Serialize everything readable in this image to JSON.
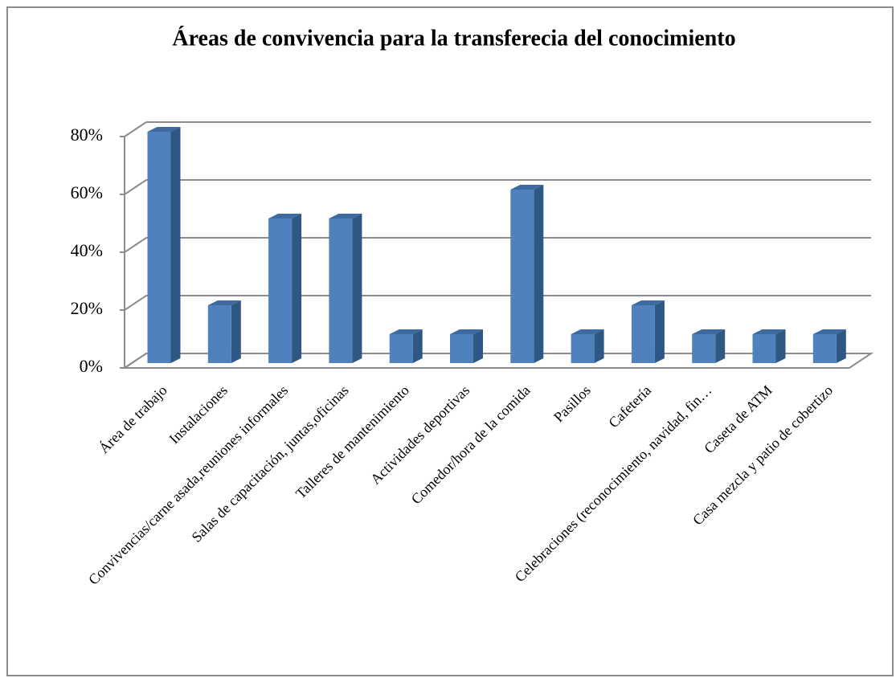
{
  "chart_data": {
    "type": "bar3d",
    "title": "Áreas de convivencia para la transferecia del conocimiento",
    "categories": [
      "Área de trabajo",
      "Instalaciones",
      "Convivencias/carne asada,reuniones informales",
      "Salas de capacitación, juntas,oficinas",
      "Talleres de mantenimiento",
      "Actividades deportivas",
      "Comedor/hora de la comida",
      "Pasillos",
      "Cafetería",
      "Celebraciones (reconocimiento, navidad, fin…",
      "Caseta de ATM",
      "Casa mezcla y patio de cobertizo"
    ],
    "values": [
      80,
      20,
      50,
      50,
      10,
      10,
      60,
      10,
      20,
      10,
      10,
      10
    ],
    "color": "#4f81bd",
    "ylim": [
      0,
      80
    ],
    "yticks": [
      {
        "value": 0,
        "label": "0%"
      },
      {
        "value": 20,
        "label": "20%"
      },
      {
        "value": 40,
        "label": "40%"
      },
      {
        "value": 60,
        "label": "60%"
      },
      {
        "value": 80,
        "label": "80%"
      }
    ],
    "grid": true
  }
}
